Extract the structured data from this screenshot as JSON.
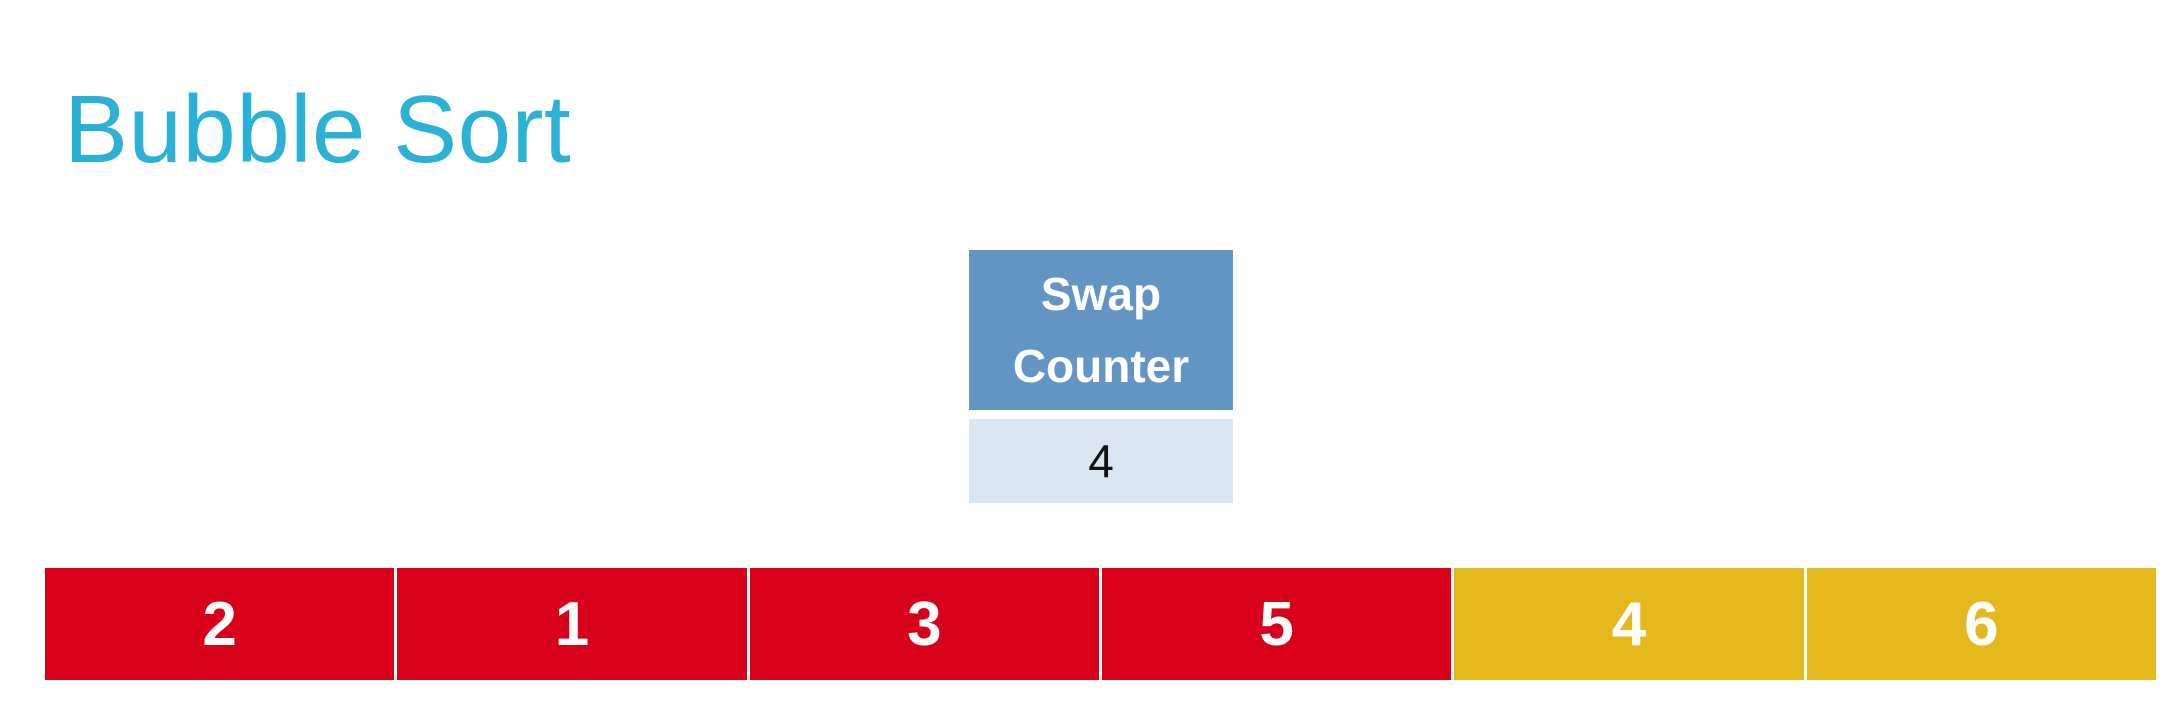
{
  "title": "Bubble Sort",
  "swap_counter": {
    "label_line1": "Swap",
    "label_line2": "Counter",
    "value": "4"
  },
  "colors": {
    "title": "#2cb1d6",
    "counter_header": "#6295c3",
    "counter_value_bg": "#dae5f3",
    "unsorted": "#d8001a",
    "highlight": "#e5b91d"
  },
  "array": [
    {
      "value": "2",
      "state": "unsorted"
    },
    {
      "value": "1",
      "state": "unsorted"
    },
    {
      "value": "3",
      "state": "unsorted"
    },
    {
      "value": "5",
      "state": "unsorted"
    },
    {
      "value": "4",
      "state": "highlight"
    },
    {
      "value": "6",
      "state": "highlight"
    }
  ]
}
